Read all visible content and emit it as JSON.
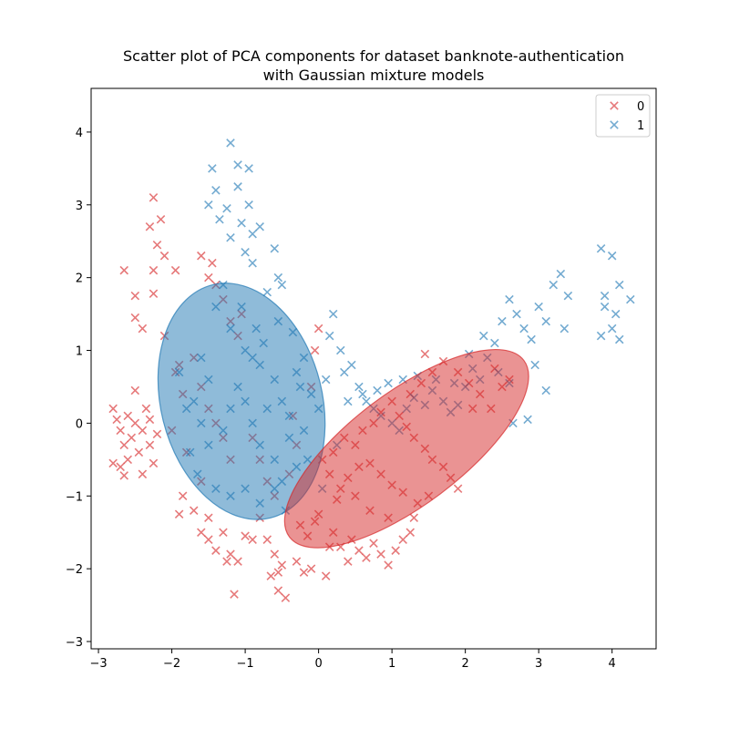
{
  "chart_data": {
    "type": "scatter",
    "title": "Scatter plot of PCA components for dataset banknote-authentication",
    "subtitle": "with Gaussian mixture models",
    "xlabel": "",
    "ylabel": "",
    "xlim": [
      -3.1,
      4.6
    ],
    "ylim": [
      -3.1,
      4.6
    ],
    "xticks": [
      -3,
      -2,
      -1,
      0,
      1,
      2,
      3,
      4
    ],
    "yticks": [
      -3,
      -2,
      -1,
      0,
      1,
      2,
      3,
      4
    ],
    "grid": false,
    "legend_position": "top-right",
    "marker": "x",
    "series": [
      {
        "name": "0",
        "color": "#d62728",
        "points": [
          [
            -2.8,
            0.2
          ],
          [
            -2.75,
            0.05
          ],
          [
            -2.7,
            -0.1
          ],
          [
            -2.65,
            -0.3
          ],
          [
            -2.6,
            -0.5
          ],
          [
            -2.7,
            -0.6
          ],
          [
            -2.55,
            -0.2
          ],
          [
            -2.5,
            0.0
          ],
          [
            -2.45,
            -0.4
          ],
          [
            -2.4,
            -0.1
          ],
          [
            -2.35,
            0.2
          ],
          [
            -2.3,
            -0.3
          ],
          [
            -2.25,
            -0.55
          ],
          [
            -2.2,
            -0.15
          ],
          [
            -2.6,
            0.1
          ],
          [
            -2.8,
            -0.55
          ],
          [
            -2.5,
            0.45
          ],
          [
            -2.4,
            -0.7
          ],
          [
            -2.65,
            -0.72
          ],
          [
            -2.3,
            0.05
          ],
          [
            -2.25,
            3.1
          ],
          [
            -2.3,
            2.7
          ],
          [
            -2.15,
            2.8
          ],
          [
            -2.2,
            2.45
          ],
          [
            -2.1,
            2.3
          ],
          [
            -2.65,
            2.1
          ],
          [
            -2.25,
            2.1
          ],
          [
            -1.95,
            2.1
          ],
          [
            -2.5,
            1.75
          ],
          [
            -2.25,
            1.78
          ],
          [
            -2.5,
            1.45
          ],
          [
            -2.4,
            1.3
          ],
          [
            -1.6,
            2.3
          ],
          [
            -1.45,
            2.2
          ],
          [
            -1.5,
            2.0
          ],
          [
            -1.4,
            1.9
          ],
          [
            -1.3,
            1.7
          ],
          [
            -1.2,
            1.4
          ],
          [
            -1.1,
            1.2
          ],
          [
            -1.05,
            1.5
          ],
          [
            -2.1,
            1.2
          ],
          [
            -1.9,
            0.8
          ],
          [
            -1.95,
            0.7
          ],
          [
            -1.7,
            0.9
          ],
          [
            -1.85,
            0.4
          ],
          [
            -1.6,
            0.5
          ],
          [
            -1.5,
            0.2
          ],
          [
            -1.4,
            0.0
          ],
          [
            -1.3,
            -0.2
          ],
          [
            -1.2,
            -0.5
          ],
          [
            -2.0,
            -0.1
          ],
          [
            -1.8,
            -0.4
          ],
          [
            -1.6,
            -0.8
          ],
          [
            -1.85,
            -1.0
          ],
          [
            -1.7,
            -1.2
          ],
          [
            -1.9,
            -1.25
          ],
          [
            -1.5,
            -1.3
          ],
          [
            -1.3,
            -1.5
          ],
          [
            -1.6,
            -1.5
          ],
          [
            -1.4,
            -1.75
          ],
          [
            -1.5,
            -1.6
          ],
          [
            -1.2,
            -1.8
          ],
          [
            -1.1,
            -1.9
          ],
          [
            -1.25,
            -1.9
          ],
          [
            -1.0,
            -1.55
          ],
          [
            -0.9,
            -1.6
          ],
          [
            -0.8,
            -1.3
          ],
          [
            -0.7,
            -1.6
          ],
          [
            -0.6,
            -1.8
          ],
          [
            -0.55,
            -2.05
          ],
          [
            -0.5,
            -1.95
          ],
          [
            -0.65,
            -2.1
          ],
          [
            -0.45,
            -2.4
          ],
          [
            -0.55,
            -2.3
          ],
          [
            -1.15,
            -2.35
          ],
          [
            -0.3,
            -1.9
          ],
          [
            -0.2,
            -2.05
          ],
          [
            -0.1,
            -2.0
          ],
          [
            0.1,
            -2.1
          ],
          [
            0.15,
            -1.7
          ],
          [
            -0.15,
            -1.55
          ],
          [
            -0.25,
            -1.4
          ],
          [
            -0.05,
            -1.35
          ],
          [
            0.0,
            -1.25
          ],
          [
            0.2,
            -1.5
          ],
          [
            0.3,
            -1.7
          ],
          [
            0.4,
            -1.9
          ],
          [
            0.45,
            -1.6
          ],
          [
            0.55,
            -1.75
          ],
          [
            0.65,
            -1.85
          ],
          [
            0.75,
            -1.65
          ],
          [
            0.85,
            -1.8
          ],
          [
            0.95,
            -1.95
          ],
          [
            1.05,
            -1.75
          ],
          [
            1.15,
            -1.6
          ],
          [
            1.25,
            -1.5
          ],
          [
            1.3,
            -1.3
          ],
          [
            0.95,
            -1.3
          ],
          [
            0.7,
            -1.2
          ],
          [
            0.5,
            -1.0
          ],
          [
            0.3,
            -0.9
          ],
          [
            0.15,
            -0.7
          ],
          [
            0.05,
            -0.5
          ],
          [
            0.2,
            -0.4
          ],
          [
            0.35,
            -0.2
          ],
          [
            0.5,
            -0.3
          ],
          [
            0.6,
            -0.1
          ],
          [
            0.75,
            0.0
          ],
          [
            0.85,
            0.15
          ],
          [
            1.0,
            0.3
          ],
          [
            1.1,
            0.1
          ],
          [
            1.2,
            -0.05
          ],
          [
            1.3,
            -0.2
          ],
          [
            1.45,
            -0.35
          ],
          [
            1.55,
            -0.5
          ],
          [
            1.7,
            -0.6
          ],
          [
            1.8,
            -0.75
          ],
          [
            1.9,
            -0.9
          ],
          [
            1.5,
            -1.0
          ],
          [
            1.35,
            -1.1
          ],
          [
            1.15,
            -0.95
          ],
          [
            1.0,
            -0.85
          ],
          [
            0.85,
            -0.7
          ],
          [
            0.7,
            -0.55
          ],
          [
            0.55,
            -0.6
          ],
          [
            0.4,
            -0.75
          ],
          [
            0.25,
            -1.05
          ],
          [
            1.25,
            0.4
          ],
          [
            1.4,
            0.55
          ],
          [
            1.55,
            0.7
          ],
          [
            1.7,
            0.85
          ],
          [
            1.9,
            0.7
          ],
          [
            2.05,
            0.55
          ],
          [
            2.2,
            0.4
          ],
          [
            2.35,
            0.2
          ],
          [
            2.5,
            0.5
          ],
          [
            2.4,
            0.75
          ],
          [
            2.6,
            0.6
          ],
          [
            1.45,
            0.95
          ],
          [
            2.1,
            0.2
          ],
          [
            -0.9,
            -0.2
          ],
          [
            -0.8,
            -0.5
          ],
          [
            -0.7,
            -0.8
          ],
          [
            -0.6,
            -1.0
          ],
          [
            -0.4,
            -0.7
          ],
          [
            -0.3,
            -0.3
          ],
          [
            -0.35,
            0.1
          ],
          [
            -0.1,
            0.5
          ],
          [
            0.0,
            1.3
          ],
          [
            -0.05,
            1.0
          ]
        ]
      },
      {
        "name": "1",
        "color": "#1f77b4",
        "points": [
          [
            -1.2,
            3.85
          ],
          [
            -1.1,
            3.55
          ],
          [
            -0.95,
            3.5
          ],
          [
            -1.45,
            3.5
          ],
          [
            -1.4,
            3.2
          ],
          [
            -1.25,
            2.95
          ],
          [
            -1.05,
            2.75
          ],
          [
            -0.9,
            2.6
          ],
          [
            -0.8,
            2.7
          ],
          [
            -1.1,
            3.25
          ],
          [
            -0.95,
            3.0
          ],
          [
            -1.5,
            3.0
          ],
          [
            -1.35,
            2.8
          ],
          [
            -1.2,
            2.55
          ],
          [
            -1.0,
            2.35
          ],
          [
            -0.6,
            2.4
          ],
          [
            -0.55,
            2.0
          ],
          [
            -0.7,
            1.8
          ],
          [
            -0.5,
            1.9
          ],
          [
            -0.9,
            2.2
          ],
          [
            -1.3,
            1.9
          ],
          [
            -1.4,
            1.6
          ],
          [
            -1.2,
            1.3
          ],
          [
            -1.0,
            1.0
          ],
          [
            -0.8,
            0.8
          ],
          [
            -0.6,
            0.6
          ],
          [
            -0.5,
            0.3
          ],
          [
            -0.4,
            0.1
          ],
          [
            -0.3,
            0.7
          ],
          [
            -0.2,
            0.9
          ],
          [
            -1.6,
            0.9
          ],
          [
            -1.5,
            0.6
          ],
          [
            -1.7,
            0.3
          ],
          [
            -1.6,
            0.0
          ],
          [
            -1.5,
            -0.3
          ],
          [
            -1.3,
            -0.1
          ],
          [
            -1.2,
            0.2
          ],
          [
            -1.1,
            0.5
          ],
          [
            -1.0,
            0.3
          ],
          [
            -0.9,
            0.0
          ],
          [
            -0.8,
            -0.3
          ],
          [
            -0.7,
            0.2
          ],
          [
            -0.6,
            -0.5
          ],
          [
            -0.5,
            -0.8
          ],
          [
            -0.4,
            -0.2
          ],
          [
            -0.3,
            -0.6
          ],
          [
            -0.2,
            -0.1
          ],
          [
            -0.1,
            0.4
          ],
          [
            0.0,
            0.2
          ],
          [
            0.1,
            0.6
          ],
          [
            0.15,
            1.2
          ],
          [
            0.2,
            1.5
          ],
          [
            0.3,
            1.0
          ],
          [
            0.35,
            0.7
          ],
          [
            0.45,
            0.8
          ],
          [
            0.55,
            0.5
          ],
          [
            0.65,
            0.3
          ],
          [
            0.75,
            0.2
          ],
          [
            0.85,
            0.1
          ],
          [
            1.0,
            0.0
          ],
          [
            1.1,
            -0.1
          ],
          [
            1.2,
            0.2
          ],
          [
            1.3,
            0.35
          ],
          [
            1.45,
            0.25
          ],
          [
            1.55,
            0.45
          ],
          [
            1.7,
            0.3
          ],
          [
            1.8,
            0.15
          ],
          [
            1.9,
            0.25
          ],
          [
            2.0,
            0.5
          ],
          [
            2.1,
            0.75
          ],
          [
            2.2,
            0.6
          ],
          [
            2.3,
            0.9
          ],
          [
            2.4,
            1.1
          ],
          [
            2.5,
            1.4
          ],
          [
            2.6,
            1.7
          ],
          [
            2.7,
            1.5
          ],
          [
            2.8,
            1.3
          ],
          [
            2.9,
            1.15
          ],
          [
            3.0,
            1.6
          ],
          [
            3.1,
            1.4
          ],
          [
            3.2,
            1.9
          ],
          [
            3.3,
            2.05
          ],
          [
            3.4,
            1.75
          ],
          [
            3.35,
            1.3
          ],
          [
            2.45,
            0.7
          ],
          [
            2.6,
            0.55
          ],
          [
            2.65,
            0.0
          ],
          [
            2.85,
            0.05
          ],
          [
            3.1,
            0.45
          ],
          [
            2.95,
            0.8
          ],
          [
            3.85,
            2.4
          ],
          [
            4.0,
            2.3
          ],
          [
            4.1,
            1.9
          ],
          [
            4.25,
            1.7
          ],
          [
            3.9,
            1.6
          ],
          [
            4.05,
            1.5
          ],
          [
            3.85,
            1.2
          ],
          [
            4.0,
            1.3
          ],
          [
            4.1,
            1.15
          ],
          [
            3.9,
            1.75
          ],
          [
            -1.9,
            0.7
          ],
          [
            -1.8,
            0.2
          ],
          [
            -1.75,
            -0.4
          ],
          [
            -1.65,
            -0.7
          ],
          [
            -1.4,
            -0.9
          ],
          [
            -1.2,
            -1.0
          ],
          [
            -1.0,
            -0.9
          ],
          [
            -0.8,
            -1.1
          ],
          [
            -0.6,
            -0.9
          ],
          [
            -0.45,
            -1.2
          ],
          [
            -0.9,
            0.9
          ],
          [
            -0.85,
            1.3
          ],
          [
            -1.05,
            1.6
          ],
          [
            -0.75,
            1.1
          ],
          [
            -0.55,
            1.4
          ],
          [
            -0.35,
            1.25
          ],
          [
            -0.25,
            0.5
          ],
          [
            -0.15,
            -0.5
          ],
          [
            0.05,
            -0.9
          ],
          [
            0.25,
            -0.3
          ],
          [
            0.4,
            0.3
          ],
          [
            0.6,
            0.4
          ],
          [
            0.8,
            0.45
          ],
          [
            0.95,
            0.55
          ],
          [
            1.15,
            0.6
          ],
          [
            1.35,
            0.65
          ],
          [
            1.6,
            0.6
          ],
          [
            1.85,
            0.55
          ],
          [
            2.05,
            0.95
          ],
          [
            2.25,
            1.2
          ]
        ]
      }
    ],
    "ellipses": [
      {
        "series": "1",
        "color": "#1f77b4",
        "center": [
          -1.05,
          0.3
        ],
        "width": 2.2,
        "height": 3.3,
        "angle_deg": 14
      },
      {
        "series": "0",
        "color": "#d62728",
        "center": [
          1.2,
          -0.35
        ],
        "width": 4.0,
        "height": 1.55,
        "angle_deg": 37
      }
    ]
  }
}
